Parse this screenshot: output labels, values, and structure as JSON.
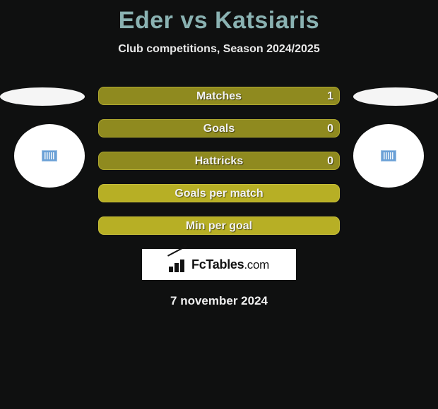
{
  "title": "Eder vs Katsiaris",
  "subtitle": "Club competitions, Season 2024/2025",
  "rows": [
    {
      "label": "Matches",
      "value": "1",
      "bg": "#8f8a1f",
      "border": "#b0a92f"
    },
    {
      "label": "Goals",
      "value": "0",
      "bg": "#8f8a1f",
      "border": "#b0a92f"
    },
    {
      "label": "Hattricks",
      "value": "0",
      "bg": "#8f8a1f",
      "border": "#b0a92f"
    },
    {
      "label": "Goals per match",
      "value": "",
      "bg": "#b7af25",
      "border": "#c8c03a"
    },
    {
      "label": "Min per goal",
      "value": "",
      "bg": "#b7af25",
      "border": "#c8c03a"
    }
  ],
  "logo": {
    "text_main": "FcTables",
    "text_suffix": ".com"
  },
  "date": "7 november 2024",
  "colors": {
    "background": "#0f1010",
    "title_color": "#8ab2b2",
    "text_light": "#efefef",
    "ellipse": "#f5f5f5",
    "circle": "#ffffff",
    "badge": "#6aa0d6"
  }
}
